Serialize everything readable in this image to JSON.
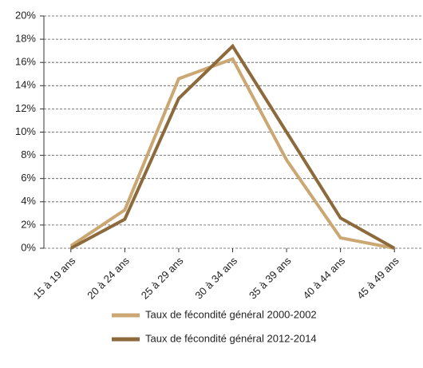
{
  "chart_data": {
    "type": "line",
    "categories": [
      "15 à 19 ans",
      "20 à 24 ans",
      "25 à 29 ans",
      "30 à 34 ans",
      "35 à 39 ans",
      "40 à 44 ans",
      "45 à 49 ans"
    ],
    "series": [
      {
        "name": "Taux de fécondité général 2000-2002",
        "color": "#cba873",
        "values": [
          0.2,
          3.3,
          14.6,
          16.3,
          7.6,
          0.9,
          0.0
        ]
      },
      {
        "name": "Taux de fécondité général 2012-2014",
        "color": "#8c6a3c",
        "values": [
          0.0,
          2.5,
          12.9,
          17.4,
          10.0,
          2.6,
          0.0
        ]
      }
    ],
    "ylim": [
      0,
      20
    ],
    "yticks": [
      {
        "value": 0,
        "label": "0%"
      },
      {
        "value": 2,
        "label": "2%"
      },
      {
        "value": 4,
        "label": "4%"
      },
      {
        "value": 6,
        "label": "6%"
      },
      {
        "value": 8,
        "label": "8%"
      },
      {
        "value": 10,
        "label": "10%"
      },
      {
        "value": 12,
        "label": "12%"
      },
      {
        "value": 14,
        "label": "14%"
      },
      {
        "value": 16,
        "label": "16%"
      },
      {
        "value": 18,
        "label": "18%"
      },
      {
        "value": 20,
        "label": "20%"
      }
    ],
    "grid": true,
    "legend": "bottom"
  }
}
